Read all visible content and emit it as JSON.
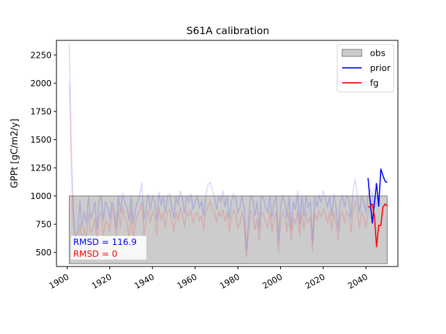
{
  "chart_data": {
    "type": "line",
    "title": "S61A calibration",
    "xlabel": "",
    "ylabel": "GPPt [gC/m2/y]",
    "xlim": [
      1895,
      2055
    ],
    "ylim": [
      375,
      2380
    ],
    "x_ticks": [
      1900,
      1920,
      1940,
      1960,
      1980,
      2000,
      2020,
      2040
    ],
    "y_ticks": [
      500,
      750,
      1000,
      1250,
      1500,
      1750,
      2000,
      2250
    ],
    "grid": false,
    "legend_position": "top-right",
    "obs_band": {
      "name": "obs",
      "x_start": 1901,
      "x_end": 2050,
      "y_min": 400,
      "y_max": 1000,
      "color": "#cccccc"
    },
    "series": [
      {
        "name": "prior",
        "color": "#0000ff",
        "x": [
          2041,
          2042,
          2043,
          2044,
          2045,
          2046,
          2047,
          2048,
          2049,
          2050
        ],
        "values": [
          1160,
          950,
          760,
          940,
          1110,
          910,
          1240,
          1180,
          1130,
          1120
        ]
      },
      {
        "name": "fg",
        "color": "#ff0000",
        "x": [
          2041,
          2042,
          2043,
          2044,
          2045,
          2046,
          2047,
          2048,
          2049,
          2050
        ],
        "values": [
          900,
          910,
          930,
          820,
          550,
          740,
          740,
          900,
          930,
          910
        ]
      }
    ],
    "background_series": [
      {
        "color": "#0000ff",
        "opacity": 0.15,
        "x_start": 1901,
        "values": [
          2350,
          1400,
          850,
          650,
          680,
          960,
          720,
          860,
          760,
          1000,
          800,
          850,
          950,
          700,
          960,
          1000,
          780,
          950,
          900,
          800,
          950,
          880,
          720,
          1000,
          850,
          1030,
          950,
          900,
          780,
          1000,
          750,
          880,
          950,
          1000,
          1120,
          780,
          900,
          1020,
          880,
          1000,
          950,
          780,
          1040,
          920,
          1000,
          850,
          1000,
          1020,
          900,
          800,
          1000,
          920,
          1050,
          980,
          850,
          1000,
          950,
          1020,
          880,
          950,
          1000,
          900,
          950,
          820,
          1000,
          1100,
          1120,
          1050,
          1000,
          880,
          1000,
          950,
          1050,
          900,
          1000,
          800,
          950,
          1020,
          980,
          850,
          900,
          1000,
          880,
          520,
          800,
          1000,
          980,
          820,
          950,
          700,
          1000,
          980,
          900,
          850,
          1000,
          800,
          950,
          1000,
          600,
          900,
          1000,
          950,
          800,
          1000,
          700,
          950,
          880,
          1050,
          750,
          1000,
          820,
          1000,
          900,
          950,
          600,
          1000,
          900,
          1000,
          950,
          1050,
          980,
          900,
          1000,
          820,
          1020,
          900,
          700,
          950,
          1000,
          900,
          1000,
          980,
          800,
          1050,
          1150,
          1000,
          850,
          1000,
          950,
          850,
          1000,
          1060,
          1000,
          1090,
          1120
        ]
      },
      {
        "color": "#ff0000",
        "opacity": 0.15,
        "x_start": 1901,
        "values": [
          2010,
          1200,
          700,
          550,
          520,
          760,
          600,
          720,
          640,
          850,
          680,
          700,
          800,
          600,
          820,
          850,
          650,
          780,
          760,
          680,
          900,
          820,
          640,
          880,
          720,
          900,
          800,
          780,
          620,
          880,
          600,
          760,
          830,
          880,
          940,
          650,
          780,
          880,
          760,
          860,
          820,
          650,
          900,
          780,
          860,
          720,
          860,
          880,
          780,
          680,
          860,
          780,
          900,
          840,
          720,
          860,
          820,
          880,
          760,
          820,
          860,
          780,
          820,
          700,
          860,
          900,
          950,
          880,
          860,
          760,
          860,
          820,
          880,
          780,
          860,
          680,
          820,
          880,
          840,
          720,
          760,
          860,
          760,
          460,
          680,
          860,
          840,
          700,
          800,
          600,
          860,
          840,
          760,
          720,
          860,
          680,
          800,
          860,
          500,
          760,
          860,
          820,
          680,
          860,
          600,
          800,
          760,
          880,
          640,
          860,
          700,
          860,
          760,
          820,
          510,
          860,
          780,
          860,
          820,
          880,
          840,
          760,
          860,
          700,
          860,
          760,
          600,
          820,
          860,
          760,
          860,
          840,
          680,
          880,
          960,
          860,
          720,
          860,
          820,
          720,
          860,
          900,
          860,
          920,
          940
        ]
      }
    ],
    "annotations": [
      {
        "text": "RMSD = 116.9",
        "color": "#0000ff"
      },
      {
        "text": "RMSD = 0",
        "color": "#ff0000"
      }
    ]
  }
}
